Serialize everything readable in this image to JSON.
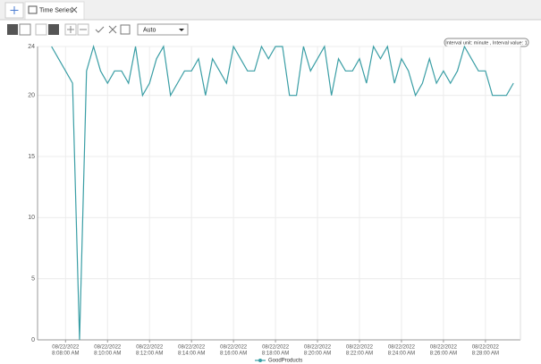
{
  "tab": {
    "title": "Time Series"
  },
  "toolbar": {
    "dropdown": "Auto"
  },
  "chart_data": {
    "type": "line",
    "annotation": "Interval unit: minute , Interval value: 1",
    "x": [
      "2022-08-22T08:07:20",
      "2022-08-22T08:07:40",
      "2022-08-22T08:08:00",
      "2022-08-22T08:08:20",
      "2022-08-22T08:08:40",
      "2022-08-22T08:09:00",
      "2022-08-22T08:09:20",
      "2022-08-22T08:09:40",
      "2022-08-22T08:10:00",
      "2022-08-22T08:10:20",
      "2022-08-22T08:10:40",
      "2022-08-22T08:11:00",
      "2022-08-22T08:11:20",
      "2022-08-22T08:11:40",
      "2022-08-22T08:12:00",
      "2022-08-22T08:12:20",
      "2022-08-22T08:12:40",
      "2022-08-22T08:13:00",
      "2022-08-22T08:13:20",
      "2022-08-22T08:13:40",
      "2022-08-22T08:14:00",
      "2022-08-22T08:14:20",
      "2022-08-22T08:14:40",
      "2022-08-22T08:15:00",
      "2022-08-22T08:15:20",
      "2022-08-22T08:15:40",
      "2022-08-22T08:16:00",
      "2022-08-22T08:16:20",
      "2022-08-22T08:16:40",
      "2022-08-22T08:17:00",
      "2022-08-22T08:17:20",
      "2022-08-22T08:17:40",
      "2022-08-22T08:18:00",
      "2022-08-22T08:18:20",
      "2022-08-22T08:18:40",
      "2022-08-22T08:19:00",
      "2022-08-22T08:19:20",
      "2022-08-22T08:19:40",
      "2022-08-22T08:20:00",
      "2022-08-22T08:20:20",
      "2022-08-22T08:20:40",
      "2022-08-22T08:21:00",
      "2022-08-22T08:21:20",
      "2022-08-22T08:21:40",
      "2022-08-22T08:22:00",
      "2022-08-22T08:22:20",
      "2022-08-22T08:22:40",
      "2022-08-22T08:23:00",
      "2022-08-22T08:23:20",
      "2022-08-22T08:23:40",
      "2022-08-22T08:24:00",
      "2022-08-22T08:24:20",
      "2022-08-22T08:24:40",
      "2022-08-22T08:25:00",
      "2022-08-22T08:25:20",
      "2022-08-22T08:25:40",
      "2022-08-22T08:26:00",
      "2022-08-22T08:26:20",
      "2022-08-22T08:26:40",
      "2022-08-22T08:27:00",
      "2022-08-22T08:27:20",
      "2022-08-22T08:27:40",
      "2022-08-22T08:28:00",
      "2022-08-22T08:28:20",
      "2022-08-22T08:28:40",
      "2022-08-22T08:29:00",
      "2022-08-22T08:29:20"
    ],
    "series": [
      {
        "name": "GoodProducts",
        "color": "#3a9ea5",
        "values": [
          24,
          23,
          22,
          21,
          0,
          22,
          24,
          22,
          21,
          22,
          22,
          21,
          24,
          20,
          21,
          23,
          24,
          20,
          21,
          22,
          22,
          23,
          20,
          23,
          22,
          21,
          24,
          23,
          22,
          22,
          24,
          23,
          24,
          24,
          20,
          20,
          24,
          22,
          23,
          24,
          20,
          23,
          22,
          22,
          23,
          21,
          24,
          23,
          24,
          21,
          23,
          22,
          20,
          21,
          23,
          21,
          22,
          21,
          22,
          24,
          23,
          22,
          22,
          20,
          20,
          20,
          21
        ]
      }
    ],
    "xlim": [
      "2022-08-22T08:06:40",
      "2022-08-22T08:29:40"
    ],
    "xticks": [
      {
        "value": "2022-08-22T08:08:00",
        "label": [
          "08/22/2022",
          "8:08:00 AM"
        ]
      },
      {
        "value": "2022-08-22T08:10:00",
        "label": [
          "08/22/2022",
          "8:10:00 AM"
        ]
      },
      {
        "value": "2022-08-22T08:12:00",
        "label": [
          "08/22/2022",
          "8:12:00 AM"
        ]
      },
      {
        "value": "2022-08-22T08:14:00",
        "label": [
          "08/22/2022",
          "8:14:00 AM"
        ]
      },
      {
        "value": "2022-08-22T08:16:00",
        "label": [
          "08/22/2022",
          "8:16:00 AM"
        ]
      },
      {
        "value": "2022-08-22T08:18:00",
        "label": [
          "08/22/2022",
          "8:18:00 AM"
        ]
      },
      {
        "value": "2022-08-22T08:20:00",
        "label": [
          "08/22/2022",
          "8:20:00 AM"
        ]
      },
      {
        "value": "2022-08-22T08:22:00",
        "label": [
          "08/22/2022",
          "8:22:00 AM"
        ]
      },
      {
        "value": "2022-08-22T08:24:00",
        "label": [
          "08/22/2022",
          "8:24:00 AM"
        ]
      },
      {
        "value": "2022-08-22T08:26:00",
        "label": [
          "08/22/2022",
          "8:26:00 AM"
        ]
      },
      {
        "value": "2022-08-22T08:28:00",
        "label": [
          "08/22/2022",
          "8:28:00 AM"
        ]
      }
    ],
    "ylim": [
      0,
      24
    ],
    "yticks": [
      0,
      5,
      10,
      15,
      20,
      24
    ],
    "grid": true,
    "legend": "bottom"
  }
}
